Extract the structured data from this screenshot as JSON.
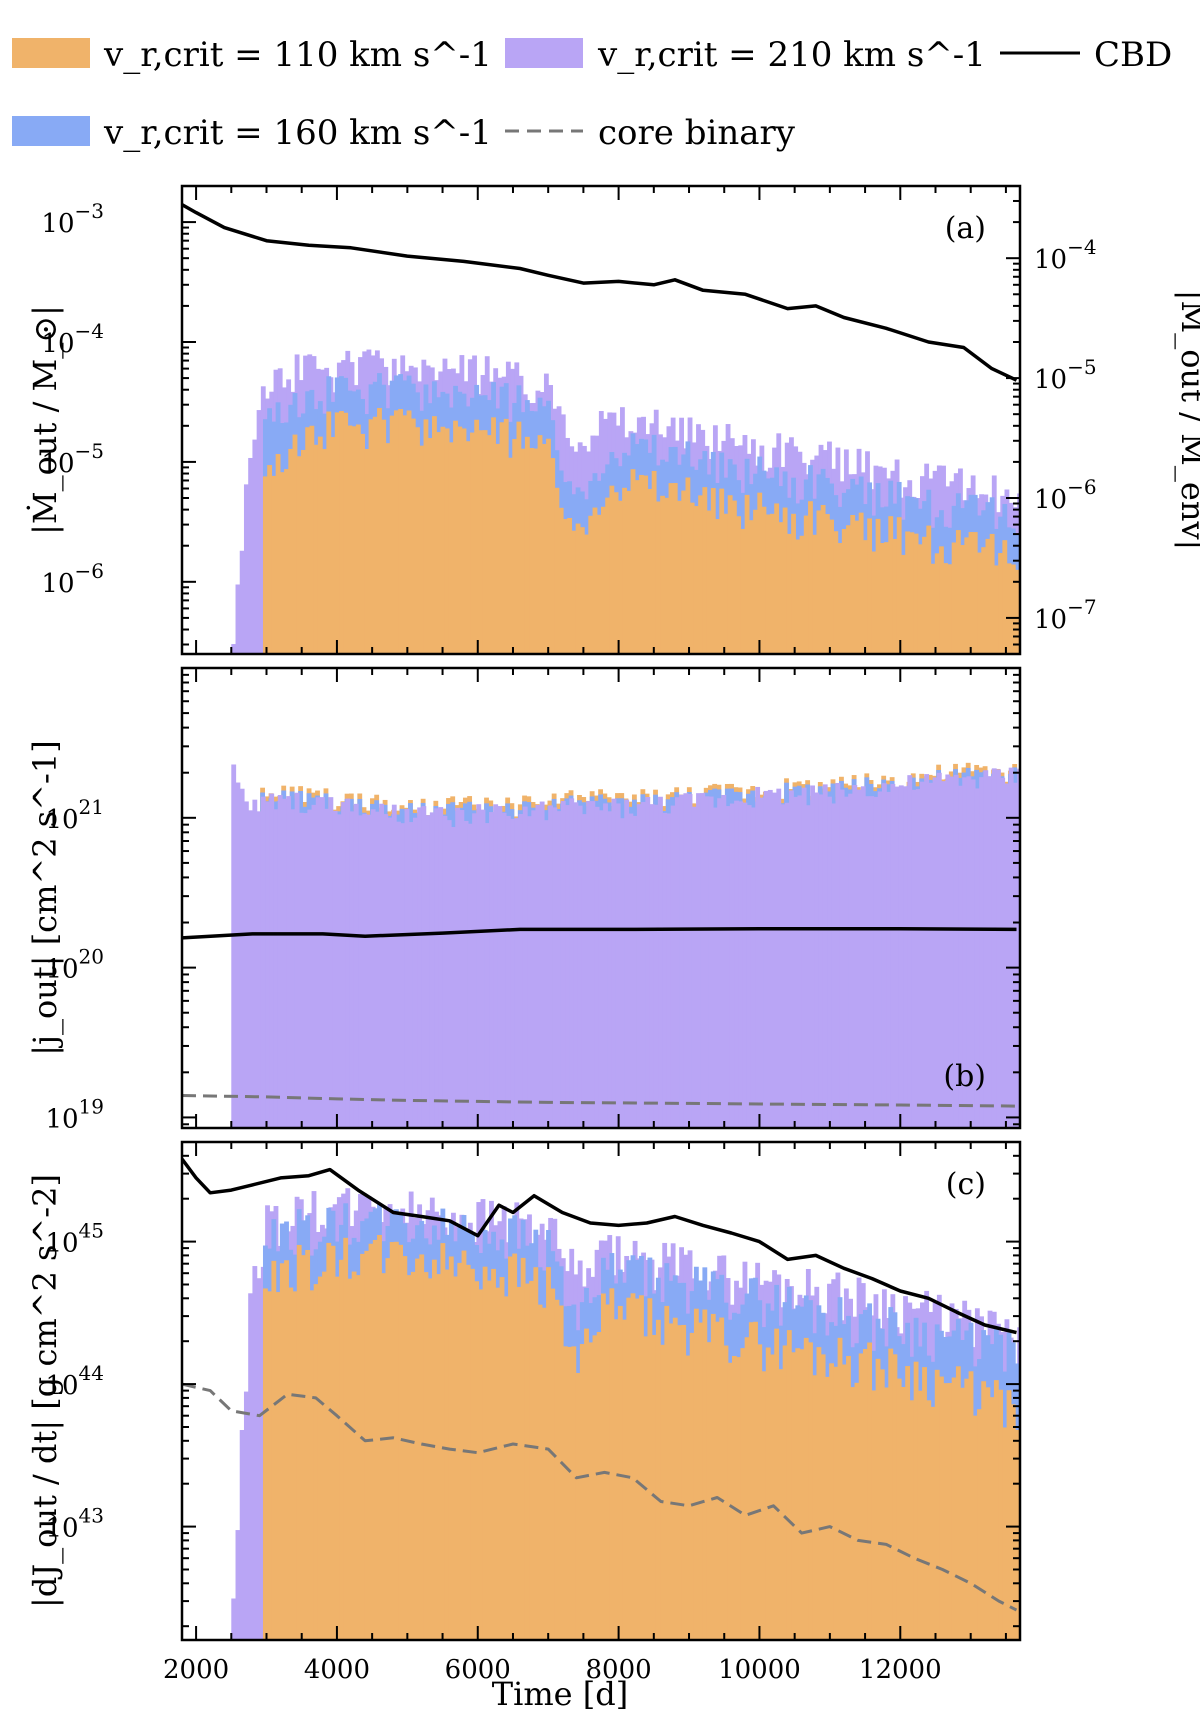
{
  "legend": {
    "items": [
      {
        "key": "v110",
        "label": "v_r,crit = 110 km s^-1",
        "kind": "patch",
        "color": "#f0b36a"
      },
      {
        "key": "v210",
        "label": "v_r,crit = 210 km s^-1",
        "kind": "patch",
        "color": "#b9a5f5"
      },
      {
        "key": "cbd",
        "label": "CBD",
        "kind": "line",
        "color": "#000000"
      },
      {
        "key": "v160",
        "label": "v_r,crit = 160 km s^-1",
        "kind": "patch",
        "color": "#88aaf5"
      },
      {
        "key": "core",
        "label": "core binary",
        "kind": "dashed",
        "color": "#777777"
      }
    ]
  },
  "chart_data": [
    {
      "type": "bar",
      "panel": "(a)",
      "title": "",
      "xlabel": "",
      "ylabel": "|Ṁ_out / M_⊙|",
      "y2label": "|Ṁ_out / M_env|",
      "xlim": [
        1800,
        13700
      ],
      "ylim": [
        2.5e-07,
        0.002
      ],
      "yscale": "log",
      "yticks": [
        "10^-3",
        "10^-4",
        "10^-5",
        "10^-6"
      ],
      "y2ticks": [
        "10^-4",
        "10^-5",
        "10^-6",
        "10^-7"
      ],
      "y2lim": [
        5e-08,
        0.0004
      ],
      "x": [
        2500,
        2750,
        3000,
        3500,
        4000,
        4500,
        5000,
        5500,
        6000,
        6500,
        7000,
        7400,
        7800,
        8200,
        8600,
        9000,
        9500,
        10000,
        10500,
        11000,
        11500,
        12000,
        12500,
        13000,
        13500,
        13650
      ],
      "series": [
        {
          "name": "v_r,crit = 110 km s^-1",
          "start": 2950,
          "values": [
            0,
            0,
            1e-05,
            2e-05,
            2.2e-05,
            2.3e-05,
            2.2e-05,
            2.1e-05,
            2e-05,
            1.8e-05,
            1.3e-05,
            2.5e-06,
            9e-06,
            8e-06,
            7e-06,
            6e-06,
            5e-06,
            4.5e-06,
            4e-06,
            3.5e-06,
            3e-06,
            2.8e-06,
            2.5e-06,
            2.2e-06,
            2e-06,
            1.5e-06
          ]
        },
        {
          "name": "v_r,crit = 160 km s^-1",
          "start": 2950,
          "values": [
            0,
            0,
            3e-05,
            4e-05,
            4.3e-05,
            4.5e-05,
            4.3e-05,
            4.1e-05,
            3.9e-05,
            3.6e-05,
            2.7e-05,
            5e-06,
            1.7e-05,
            1.6e-05,
            1.4e-05,
            1.2e-05,
            1e-05,
            9e-06,
            8e-06,
            7e-06,
            6e-06,
            5.5e-06,
            5e-06,
            4.5e-06,
            4e-06,
            3e-06
          ]
        },
        {
          "name": "v_r,crit = 210 km s^-1",
          "start": 2500,
          "values": [
            4e-07,
            2e-05,
            6e-05,
            6.5e-05,
            6.8e-05,
            7e-05,
            6.8e-05,
            6.5e-05,
            6.2e-05,
            5.8e-05,
            4.5e-05,
            2e-05,
            2.6e-05,
            2.4e-05,
            2.2e-05,
            2e-05,
            1.7e-05,
            1.5e-05,
            1.3e-05,
            1.2e-05,
            1e-05,
            9e-06,
            8e-06,
            7e-06,
            6e-06,
            5e-06
          ]
        },
        {
          "name": "CBD",
          "x": [
            1800,
            2000,
            2400,
            3000,
            3600,
            4200,
            5000,
            5800,
            6600,
            7000,
            7500,
            8000,
            8500,
            8800,
            9200,
            9800,
            10400,
            10800,
            11200,
            11800,
            12400,
            12900,
            13300,
            13650
          ],
          "values": [
            0.0014,
            0.0012,
            0.0009,
            0.0007,
            0.00064,
            0.00061,
            0.00052,
            0.00047,
            0.00041,
            0.00036,
            0.00031,
            0.00032,
            0.0003,
            0.00033,
            0.00027,
            0.00025,
            0.00019,
            0.0002,
            0.00016,
            0.00013,
            0.0001,
            9e-05,
            6e-05,
            4.8e-05
          ]
        }
      ]
    },
    {
      "type": "bar",
      "panel": "(b)",
      "title": "",
      "xlabel": "",
      "ylabel": "|j_out|   [cm^2 s^-1]",
      "xlim": [
        1800,
        13700
      ],
      "ylim": [
        8.5e+18,
        1e+22
      ],
      "yscale": "log",
      "yticks": [
        "10^21",
        "10^20",
        "10^19"
      ],
      "x": [
        2500,
        2750,
        3000,
        3500,
        4000,
        4500,
        5000,
        5500,
        6000,
        6500,
        7000,
        7500,
        8000,
        8500,
        9000,
        9500,
        10000,
        10500,
        11000,
        11500,
        12000,
        12500,
        13000,
        13500,
        13650
      ],
      "series": [
        {
          "name": "v_r,crit = 110 km s^-1",
          "start": 2850,
          "values": [
            0,
            0,
            1.4e+21,
            1.4e+21,
            1.3e+21,
            1.2e+21,
            1.1e+21,
            1.15e+21,
            1.2e+21,
            1.15e+21,
            1.25e+21,
            1.3e+21,
            1.3e+21,
            1.35e+21,
            1.4e+21,
            1.45e+21,
            1.5e+21,
            1.55e+21,
            1.6e+21,
            1.7e+21,
            1.8e+21,
            1.9e+21,
            2e+21,
            2e+21,
            2e+21
          ]
        },
        {
          "name": "v_r,crit = 160 km s^-1",
          "start": 2850,
          "values": [
            0,
            0,
            1.3e+21,
            1.3e+21,
            1.2e+21,
            1.1e+21,
            1.05e+21,
            1.05e+21,
            1.1e+21,
            1.05e+21,
            1.15e+21,
            1.2e+21,
            1.2e+21,
            1.25e+21,
            1.3e+21,
            1.35e+21,
            1.4e+21,
            1.45e+21,
            1.5e+21,
            1.6e+21,
            1.7e+21,
            1.75e+21,
            1.85e+21,
            1.9e+21,
            1.9e+21
          ]
        },
        {
          "name": "v_r,crit = 210 km s^-1",
          "start": 2500,
          "values": [
            2e+21,
            1.1e+21,
            1.25e+21,
            1.25e+21,
            1.15e+21,
            1.05e+21,
            1e+21,
            1e+21,
            1.05e+21,
            1e+21,
            1.1e+21,
            1.15e+21,
            1.15e+21,
            1.2e+21,
            1.25e+21,
            1.3e+21,
            1.35e+21,
            1.4e+21,
            1.45e+21,
            1.55e+21,
            1.6e+21,
            1.7e+21,
            1.8e+21,
            1.85e+21,
            1.9e+21
          ]
        },
        {
          "name": "CBD",
          "x": [
            1800,
            2800,
            3800,
            4400,
            5500,
            6600,
            8000,
            10000,
            12000,
            13650
          ],
          "values": [
            1.58e+20,
            1.68e+20,
            1.68e+20,
            1.62e+20,
            1.7e+20,
            1.8e+20,
            1.8e+20,
            1.82e+20,
            1.82e+20,
            1.8e+20
          ]
        },
        {
          "name": "core binary",
          "x": [
            1800,
            3000,
            4000,
            5000,
            6000,
            7000,
            8000,
            9000,
            10000,
            11000,
            12000,
            13000,
            13650
          ],
          "values": [
            1.4e+19,
            1.37e+19,
            1.33e+19,
            1.3e+19,
            1.28e+19,
            1.26e+19,
            1.25e+19,
            1.24e+19,
            1.23e+19,
            1.22e+19,
            1.21e+19,
            1.2e+19,
            1.19e+19
          ]
        }
      ]
    },
    {
      "type": "bar",
      "panel": "(c)",
      "title": "",
      "xlabel": "Time   [d]",
      "ylabel": "|dJ_out / dt|   [g cm^2 s^-2]",
      "xlim": [
        1800,
        13700
      ],
      "ylim": [
        1.6e+42,
        5e+45
      ],
      "yscale": "log",
      "yticks": [
        "10^45",
        "10^44",
        "10^43"
      ],
      "xticks": [
        "2000",
        "4000",
        "6000",
        "8000",
        "10000",
        "12000"
      ],
      "xtick_values": [
        2000,
        4000,
        6000,
        8000,
        10000,
        12000
      ],
      "x": [
        2500,
        2750,
        3000,
        3500,
        4000,
        4500,
        5000,
        5500,
        6000,
        6500,
        7000,
        7400,
        7800,
        8200,
        8600,
        9000,
        9500,
        10000,
        10500,
        11000,
        11500,
        12000,
        12500,
        13000,
        13500,
        13650
      ],
      "series": [
        {
          "name": "v_r,crit = 110 km s^-1",
          "start": 2950,
          "values": [
            0,
            0,
            6e+44,
            8e+44,
            8.5e+44,
            9e+44,
            8.5e+44,
            8e+44,
            7.5e+44,
            7e+44,
            5.5e+44,
            1.5e+44,
            4e+44,
            3.5e+44,
            3e+44,
            2.8e+44,
            2.5e+44,
            2.2e+44,
            2e+44,
            1.8e+44,
            1.6e+44,
            1.4e+44,
            1.2e+44,
            1e+44,
            8e+43,
            6e+43
          ]
        },
        {
          "name": "v_r,crit = 160 km s^-1",
          "start": 2950,
          "values": [
            0,
            0,
            1.2e+45,
            1.4e+45,
            1.5e+45,
            1.5e+45,
            1.45e+45,
            1.4e+45,
            1.35e+45,
            1.3e+45,
            1e+45,
            3e+44,
            7e+44,
            6.5e+44,
            6e+44,
            5.5e+44,
            5e+44,
            4.5e+44,
            4e+44,
            3.5e+44,
            3e+44,
            2.8e+44,
            2.5e+44,
            2.2e+44,
            2e+44,
            1.8e+44
          ]
        },
        {
          "name": "v_r,crit = 210 km s^-1",
          "start": 2500,
          "values": [
            4e+42,
            5e+44,
            1.6e+45,
            1.8e+45,
            1.9e+45,
            1.9e+45,
            1.85e+45,
            1.8e+45,
            1.7e+45,
            1.6e+45,
            1.3e+45,
            6e+44,
            9e+44,
            8.5e+44,
            8e+44,
            7.5e+44,
            6.5e+44,
            6e+44,
            5.5e+44,
            5e+44,
            4.5e+44,
            4e+44,
            3.5e+44,
            3e+44,
            2.6e+44,
            2.3e+44
          ]
        },
        {
          "name": "CBD",
          "x": [
            1800,
            2000,
            2200,
            2500,
            2800,
            3200,
            3600,
            3900,
            4300,
            4800,
            5200,
            5600,
            6000,
            6300,
            6500,
            6800,
            7200,
            7600,
            8000,
            8400,
            8800,
            9200,
            9600,
            10000,
            10400,
            10800,
            11200,
            11600,
            12000,
            12400,
            12800,
            13200,
            13650
          ],
          "values": [
            3.8e+45,
            2.8e+45,
            2.2e+45,
            2.3e+45,
            2.5e+45,
            2.8e+45,
            2.9e+45,
            3.2e+45,
            2.3e+45,
            1.6e+45,
            1.5e+45,
            1.4e+45,
            1.1e+45,
            1.8e+45,
            1.6e+45,
            2.1e+45,
            1.6e+45,
            1.35e+45,
            1.3e+45,
            1.35e+45,
            1.5e+45,
            1.3e+45,
            1.15e+45,
            1e+45,
            7.5e+44,
            8e+44,
            6.5e+44,
            5.5e+44,
            4.5e+44,
            4e+44,
            3.2e+44,
            2.6e+44,
            2.3e+44
          ]
        },
        {
          "name": "core binary",
          "x": [
            1800,
            2200,
            2500,
            2900,
            3300,
            3700,
            4000,
            4400,
            4800,
            5200,
            5600,
            6000,
            6500,
            7000,
            7400,
            7800,
            8200,
            8600,
            9000,
            9400,
            9800,
            10200,
            10600,
            11000,
            11400,
            11800,
            12200,
            12600,
            13000,
            13400,
            13650
          ],
          "values": [
            1e+44,
            9e+43,
            6.5e+43,
            6e+43,
            8.5e+43,
            8e+43,
            6e+43,
            4e+43,
            4.2e+43,
            3.8e+43,
            3.5e+43,
            3.3e+43,
            3.8e+43,
            3.5e+43,
            2.2e+43,
            2.4e+43,
            2.2e+43,
            1.5e+43,
            1.4e+43,
            1.6e+43,
            1.2e+43,
            1.4e+43,
            9e+42,
            1e+43,
            8e+42,
            7.5e+42,
            6e+42,
            5e+42,
            4e+42,
            3e+42,
            2.6e+42
          ]
        }
      ]
    }
  ],
  "axis_text": {
    "x_tick_labels": [
      "2000",
      "4000",
      "6000",
      "8000",
      "10000",
      "12000"
    ],
    "x_label": "Time   [d]"
  }
}
